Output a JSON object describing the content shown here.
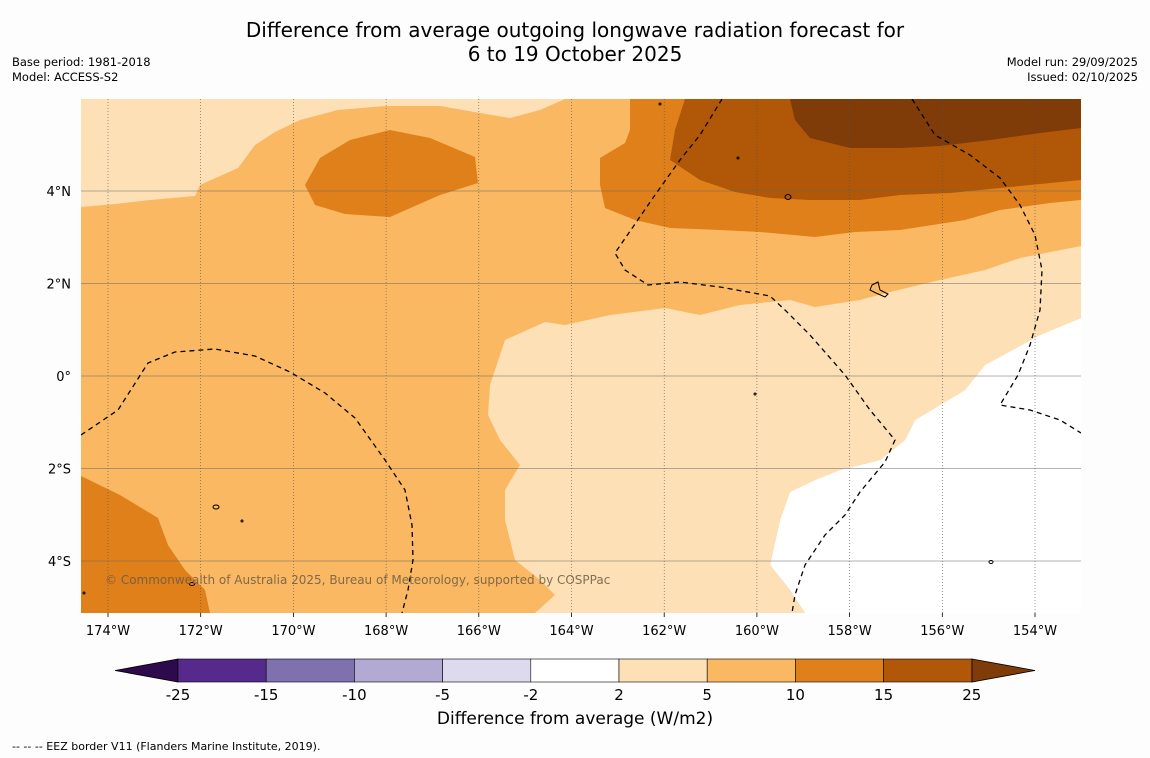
{
  "title": {
    "line1": "Difference from average outgoing longwave radiation forecast for",
    "line2": "6 to 19 October 2025"
  },
  "meta_left": {
    "base_period": "Base period: 1981-2018",
    "model": "Model: ACCESS-S2"
  },
  "meta_right": {
    "model_run": "Model run: 29/09/2025",
    "issued": "Issued: 02/10/2025"
  },
  "map": {
    "lon_ticks": [
      "174°W",
      "172°W",
      "170°W",
      "168°W",
      "166°W",
      "164°W",
      "162°W",
      "160°W",
      "158°W",
      "156°W",
      "154°W"
    ],
    "lat_ticks": [
      "4°N",
      "2°N",
      "0°",
      "2°S",
      "4°S"
    ],
    "copyright": "© Commonwealth of Australia 2025, Bureau of Meteorology, supported by COSPPac"
  },
  "colorbar": {
    "label": "Difference from average (W/m2)",
    "ticks": [
      "-25",
      "-15",
      "-10",
      "-5",
      "-2",
      "2",
      "5",
      "10",
      "15",
      "25"
    ],
    "colors": [
      "#552a8c",
      "#7e71ae",
      "#b3aad4",
      "#dcdaec",
      "#ffffff",
      "#fde0b6",
      "#fab862",
      "#e0801a",
      "#b15708"
    ],
    "extend_low_color": "#2d0a4b",
    "extend_high_color": "#7f3b08"
  },
  "fill_colors": {
    "level_2_5": "#fde0b6",
    "level_5_10": "#fab862",
    "level_10_15": "#e0801a",
    "level_15_25": "#b15708",
    "level_25_plus": "#7f3b08"
  },
  "footnote": "--  --  -- EEZ border V11 (Flanders Marine Institute, 2019)."
}
